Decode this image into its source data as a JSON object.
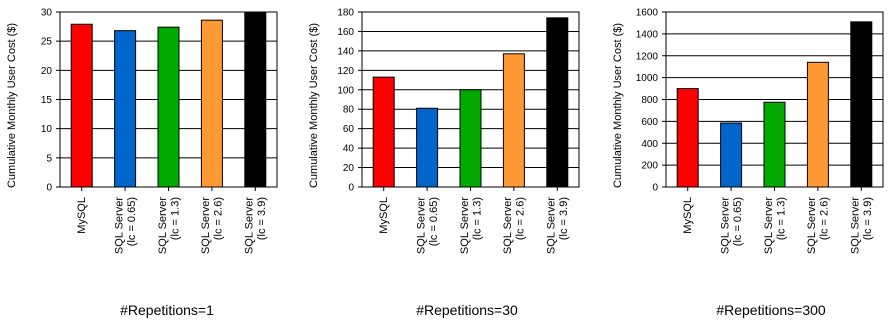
{
  "chart_data": [
    {
      "type": "bar",
      "title": "#Repetitions=1",
      "ylabel": "Cumulative Monthly User Cost ($)",
      "xlabel": "",
      "ylim": [
        0,
        30
      ],
      "yticks": [
        0,
        5,
        10,
        15,
        20,
        25,
        30
      ],
      "grid": true,
      "categories": [
        [
          "MySQL"
        ],
        [
          "SQL Server",
          "(lc = 0.65)"
        ],
        [
          "SQL Server",
          "(lc = 1.3)"
        ],
        [
          "SQL Server",
          "(lc = 2.6)"
        ],
        [
          "SQL Server",
          "(lc = 3.9)"
        ]
      ],
      "values": [
        27.9,
        26.8,
        27.4,
        28.6,
        30
      ],
      "colors": [
        "#ff0000",
        "#0066cc",
        "#00aa00",
        "#ff9933",
        "#000000"
      ]
    },
    {
      "type": "bar",
      "title": "#Repetitions=30",
      "ylabel": "Cumulative Monthly User Cost ($)",
      "xlabel": "",
      "ylim": [
        0,
        180
      ],
      "yticks": [
        0,
        20,
        40,
        60,
        80,
        100,
        120,
        140,
        160,
        180
      ],
      "grid": true,
      "categories": [
        [
          "MySQL"
        ],
        [
          "SQL Server",
          "(lc = 0.65)"
        ],
        [
          "SQL Server",
          "(lc = 1.3)"
        ],
        [
          "SQL Server",
          "(lc = 2.6)"
        ],
        [
          "SQL Server",
          "(lc = 3.9)"
        ]
      ],
      "values": [
        113,
        81,
        100,
        137,
        174
      ],
      "colors": [
        "#ff0000",
        "#0066cc",
        "#00aa00",
        "#ff9933",
        "#000000"
      ]
    },
    {
      "type": "bar",
      "title": "#Repetitions=300",
      "ylabel": "Cumulative Monthly User Cost ($)",
      "xlabel": "",
      "ylim": [
        0,
        1600
      ],
      "yticks": [
        0,
        200,
        400,
        600,
        800,
        1000,
        1200,
        1400,
        1600
      ],
      "grid": true,
      "categories": [
        [
          "MySQL"
        ],
        [
          "SQL Server",
          "(lc = 0.65)"
        ],
        [
          "SQL Server",
          "(lc = 1.3)"
        ],
        [
          "SQL Server",
          "(lc = 2.6)"
        ],
        [
          "SQL Server",
          "(lc = 3.9)"
        ]
      ],
      "values": [
        900,
        585,
        775,
        1140,
        1510
      ],
      "colors": [
        "#ff0000",
        "#0066cc",
        "#00aa00",
        "#ff9933",
        "#000000"
      ]
    }
  ]
}
